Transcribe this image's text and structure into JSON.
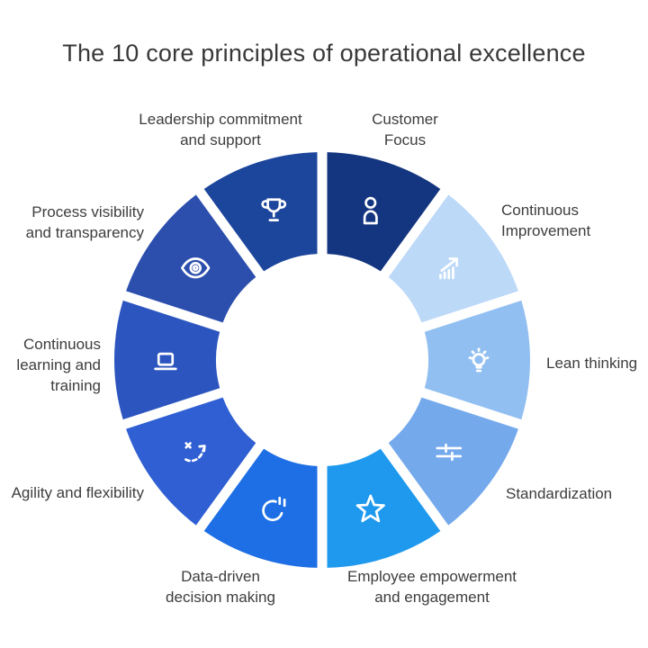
{
  "header": {
    "title": "The 10 core principles of operational excellence"
  },
  "diagram": {
    "type": "circular-cycle-donut",
    "background_color": "#ffffff",
    "label_color": "#3d3d3d",
    "icon_color": "#ffffff",
    "segment_count": 10,
    "segments": [
      {
        "order": 1,
        "id": "customer-focus",
        "label": "Customer\nFocus",
        "icon": "user-icon",
        "color": "#14357F"
      },
      {
        "order": 2,
        "id": "continuous-improvement",
        "label": "Continuous\nImprovement",
        "icon": "growth-arrow-icon",
        "color": "#BDD9F8"
      },
      {
        "order": 3,
        "id": "lean-thinking",
        "label": "Lean thinking",
        "icon": "lightbulb-icon",
        "color": "#92BFF1"
      },
      {
        "order": 4,
        "id": "standardization",
        "label": "Standardization",
        "icon": "sliders-icon",
        "color": "#74A9EC"
      },
      {
        "order": 5,
        "id": "employee-empowerment",
        "label": "Employee empowerment\nand engagement",
        "icon": "star-icon",
        "color": "#1E99EE"
      },
      {
        "order": 6,
        "id": "data-driven-decisions",
        "label": "Data-driven\ndecision making",
        "icon": "pie-chart-icon",
        "color": "#1E6FE5"
      },
      {
        "order": 7,
        "id": "agility-flexibility",
        "label": "Agility and flexibility",
        "icon": "route-arrow-icon",
        "color": "#2F5FD2"
      },
      {
        "order": 8,
        "id": "continuous-learning",
        "label": "Continuous\nlearning and\ntraining",
        "icon": "laptop-icon",
        "color": "#2C55BF"
      },
      {
        "order": 9,
        "id": "process-visibility",
        "label": "Process visibility\nand transparency",
        "icon": "eye-icon",
        "color": "#2C4FAE"
      },
      {
        "order": 10,
        "id": "leadership-commitment",
        "label": "Leadership commitment\nand support",
        "icon": "trophy-icon",
        "color": "#1C459C"
      }
    ]
  }
}
